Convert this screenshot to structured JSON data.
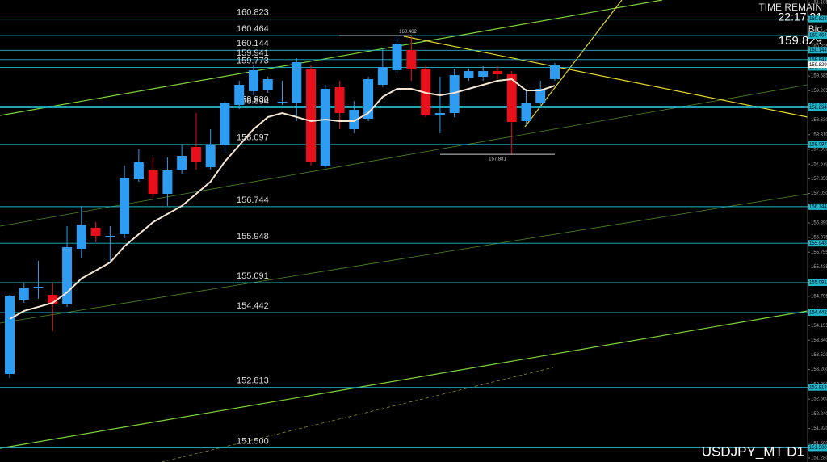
{
  "chart_data": {
    "type": "candlestick",
    "symbol_label": "USDJPY_MT D1",
    "time_remain_label": "TIME REMAIN",
    "time_remain": "22:17:21",
    "bid_label": "Bid",
    "bid": 159.829,
    "up_color": "#2e9cf0",
    "down_color": "#e8101a",
    "level_color": "#1fb8c8",
    "ylim": [
      151.192,
      161.238
    ],
    "yticks": [
      161.185,
      {
        "value": 160.865,
        "label": "160.865"
      },
      160.545,
      160.225,
      159.905,
      159.585,
      159.265,
      158.945,
      {
        "value": 158.63,
        "label": "158.630"
      },
      {
        "value": 158.31,
        "label": "158.310"
      },
      {
        "value": 157.99,
        "label": "157.990"
      },
      {
        "value": 157.67,
        "label": "157.670"
      },
      {
        "value": 157.35,
        "label": "157.350"
      },
      {
        "value": 157.03,
        "label": "157.030"
      },
      {
        "value": 156.71,
        "label": "156.710"
      },
      {
        "value": 156.39,
        "label": "156.390"
      },
      156.075,
      155.755,
      155.435,
      155.115,
      154.795,
      154.475,
      154.155,
      {
        "value": 153.84,
        "label": "153.840"
      },
      {
        "value": 153.52,
        "label": "153.520"
      },
      {
        "value": 153.2,
        "label": "153.200"
      },
      {
        "value": 152.88,
        "label": "152.880"
      },
      {
        "value": 152.56,
        "label": "152.560"
      },
      {
        "value": 152.24,
        "label": "152.240"
      },
      {
        "value": 151.92,
        "label": "151.920"
      },
      {
        "value": 151.6,
        "label": "151.600"
      },
      {
        "value": 151.28,
        "label": "151.280"
      }
    ],
    "levels": [
      160.823,
      160.464,
      160.144,
      159.941,
      159.773,
      {
        "value": 158.93,
        "label": "158.930"
      },
      158.894,
      158.097,
      156.744,
      155.948,
      155.091,
      154.442,
      152.813,
      {
        "value": 151.5,
        "label": "151.500"
      }
    ],
    "annotations": [
      160.462,
      157.881
    ],
    "open": [
      153.106,
      154.722,
      154.968,
      154.827,
      154.617,
      155.829,
      156.286,
      156.075,
      156.145,
      157.339,
      157.55,
      157.023,
      157.55,
      158.042,
      157.602,
      158.077,
      158.955,
      159.254,
      159.271,
      158.99,
      158.99,
      159.745,
      157.638,
      159.341,
      158.428,
      158.656,
      159.394,
      159.71,
      160.149,
      159.745,
      158.744,
      158.779,
      159.552,
      159.569,
      159.692,
      159.622,
      158.604,
      158.99,
      159.517
    ],
    "high": [
      154.827,
      155.091,
      155.565,
      155.091,
      156.321,
      156.76,
      156.409,
      156.321,
      157.638,
      157.989,
      157.813,
      157.813,
      158.077,
      158.779,
      158.428,
      159.042,
      159.482,
      159.833,
      159.569,
      159.482,
      159.973,
      159.833,
      159.394,
      159.482,
      159.042,
      159.569,
      160.184,
      160.462,
      160.447,
      159.833,
      159.569,
      159.745,
      159.745,
      159.798,
      159.798,
      159.692,
      159.306,
      159.482,
      159.868
    ],
    "low": [
      153.018,
      154.652,
      154.74,
      154.037,
      154.564,
      155.618,
      155.969,
      155.53,
      156.057,
      157.286,
      156.935,
      156.76,
      157.462,
      157.55,
      157.55,
      157.901,
      158.867,
      159.165,
      159.218,
      158.955,
      158.604,
      157.638,
      157.585,
      158.428,
      158.34,
      158.604,
      159.341,
      159.657,
      159.482,
      158.691,
      158.34,
      158.691,
      159.482,
      159.482,
      159.517,
      157.881,
      158.516,
      158.955,
      159.482
    ],
    "close": [
      154.81,
      154.985,
      155.003,
      154.617,
      155.864,
      156.356,
      156.11,
      156.11,
      157.374,
      157.708,
      157.023,
      157.55,
      157.848,
      157.725,
      158.077,
      158.99,
      159.394,
      159.71,
      159.517,
      159.025,
      159.885,
      157.725,
      159.306,
      158.779,
      158.849,
      159.517,
      159.78,
      160.272,
      159.745,
      158.744,
      158.779,
      159.604,
      159.692,
      159.692,
      159.622,
      158.586,
      158.99,
      159.306,
      159.829
    ],
    "ma": {
      "color": "#f5e6d3",
      "values": [
        154.301,
        154.477,
        154.565,
        154.652,
        154.88,
        155.179,
        155.354,
        155.53,
        155.882,
        156.145,
        156.409,
        156.585,
        156.76,
        157.023,
        157.287,
        157.726,
        158.077,
        158.428,
        158.692,
        158.779,
        158.692,
        158.604,
        158.639,
        158.604,
        158.604,
        158.779,
        159.131,
        159.306,
        159.306,
        159.218,
        159.166,
        159.218,
        159.306,
        159.394,
        159.482,
        159.517,
        159.271,
        159.271,
        159.376
      ]
    }
  }
}
